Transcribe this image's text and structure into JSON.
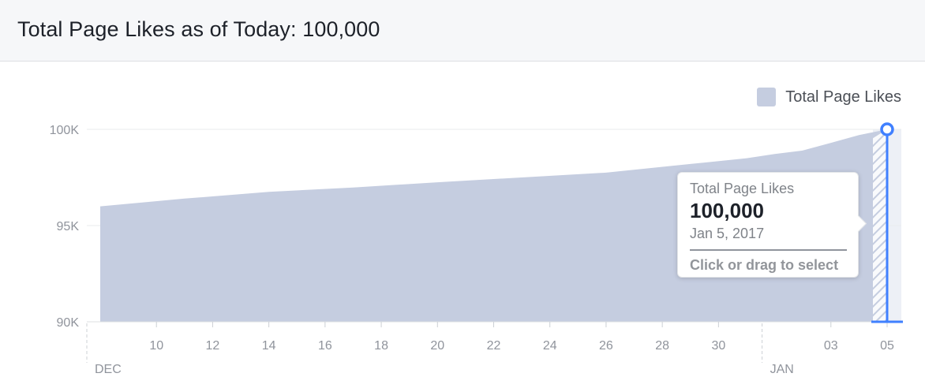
{
  "header": {
    "title": "Total Page Likes as of Today: 100,000"
  },
  "legend": {
    "label": "Total Page Likes"
  },
  "tooltip": {
    "series": "Total Page Likes",
    "value": "100,000",
    "date": "Jan 5, 2017",
    "hint": "Click or drag to select"
  },
  "colors": {
    "area": "#c5cde0",
    "accent": "#4080ff",
    "grid": "#e9ebee",
    "selection_band": "#edf0f6"
  },
  "chart_data": {
    "type": "area",
    "title": "Total Page Likes as of Today: 100,000",
    "xlabel": "",
    "ylabel": "",
    "series": [
      {
        "name": "Total Page Likes",
        "x": [
          "2016-12-08",
          "2016-12-11",
          "2016-12-14",
          "2016-12-17",
          "2016-12-20",
          "2016-12-23",
          "2016-12-26",
          "2016-12-29",
          "2016-12-31",
          "2017-01-01",
          "2017-01-02",
          "2017-01-03",
          "2017-01-04",
          "2017-01-05"
        ],
        "values": [
          96000,
          96400,
          96750,
          96980,
          97250,
          97500,
          97750,
          98200,
          98500,
          98720,
          98900,
          99300,
          99700,
          100000
        ]
      }
    ],
    "ylim": [
      90000,
      100000
    ],
    "yticks": [
      {
        "value": 90000,
        "label": "90K"
      },
      {
        "value": 95000,
        "label": "95K"
      },
      {
        "value": 100000,
        "label": "100K"
      }
    ],
    "xlim": [
      "2016-12-08",
      "2017-01-05"
    ],
    "xticks": [
      {
        "date": "2016-12-10",
        "label": "10"
      },
      {
        "date": "2016-12-12",
        "label": "12"
      },
      {
        "date": "2016-12-14",
        "label": "14"
      },
      {
        "date": "2016-12-16",
        "label": "16"
      },
      {
        "date": "2016-12-18",
        "label": "18"
      },
      {
        "date": "2016-12-20",
        "label": "20"
      },
      {
        "date": "2016-12-22",
        "label": "22"
      },
      {
        "date": "2016-12-24",
        "label": "24"
      },
      {
        "date": "2016-12-26",
        "label": "26"
      },
      {
        "date": "2016-12-28",
        "label": "28"
      },
      {
        "date": "2016-12-30",
        "label": "30"
      },
      {
        "date": "2017-01-03",
        "label": "03"
      },
      {
        "date": "2017-01-05",
        "label": "05"
      }
    ],
    "month_labels": [
      {
        "date": "2016-12-08",
        "label": "DEC"
      },
      {
        "date": "2017-01-01",
        "label": "JAN"
      }
    ],
    "selected_date": "2017-01-05",
    "grid": true,
    "legend_position": "top-right"
  }
}
